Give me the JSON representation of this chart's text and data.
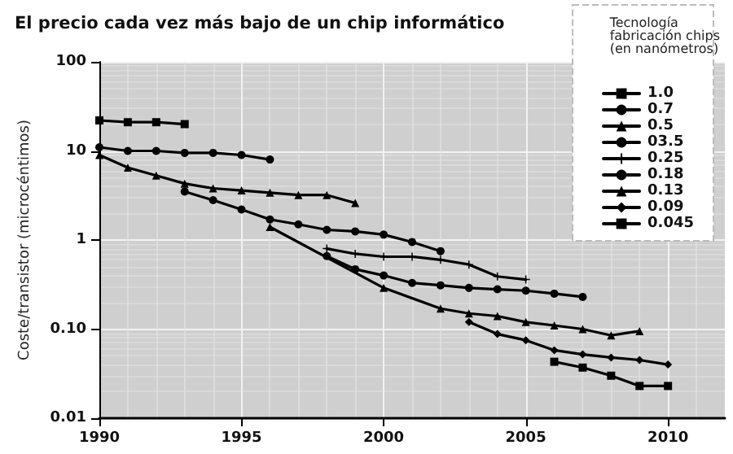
{
  "chart_data": {
    "type": "line",
    "title": "El precio cada vez más bajo de un chip informático",
    "ylabel": "Coste/transistor (microcéntimos)",
    "legend_title": "Tecnología\nfabricación chips\n(en nanómetros)",
    "xlim": [
      1990,
      2012
    ],
    "xticks": [
      1990,
      1995,
      2000,
      2005,
      2010
    ],
    "ylim": [
      0.01,
      100
    ],
    "yticks": [
      0.01,
      {
        "value": 0.1,
        "label": "0.10"
      },
      1,
      10,
      100
    ],
    "log": "y",
    "grid": true,
    "legend": "top right",
    "series": [
      {
        "name": "1.0",
        "color": "#000000",
        "marker": "square",
        "x": [
          1990,
          1991,
          1992,
          1993
        ],
        "values": [
          22,
          21,
          21,
          20
        ]
      },
      {
        "name": "0.7",
        "color": "#000000",
        "marker": "circle",
        "x": [
          1990,
          1991,
          1992,
          1993,
          1994,
          1995,
          1996
        ],
        "values": [
          11,
          10,
          10,
          9.5,
          9.5,
          9,
          8
        ]
      },
      {
        "name": "0.5",
        "color": "#000000",
        "marker": "triangle",
        "x": [
          1990,
          1991,
          1992,
          1993,
          1994,
          1995,
          1996,
          1997,
          1998,
          1999
        ],
        "values": [
          9,
          6.5,
          5.3,
          4.3,
          3.8,
          3.6,
          3.4,
          3.2,
          3.2,
          2.6
        ]
      },
      {
        "name": "03.5",
        "color": "#000000",
        "marker": "circle",
        "x": [
          1993,
          1994,
          1995,
          1996,
          1997,
          1998,
          1999,
          2000,
          2001,
          2002
        ],
        "values": [
          3.5,
          2.8,
          2.2,
          1.7,
          1.5,
          1.3,
          1.25,
          1.15,
          0.95,
          0.75
        ]
      },
      {
        "name": "0.25",
        "color": "#000000",
        "marker": "cross",
        "x": [
          1998,
          1999,
          2000,
          2001,
          2002,
          2003,
          2004,
          2005
        ],
        "values": [
          0.8,
          0.7,
          0.65,
          0.65,
          0.6,
          0.53,
          0.39,
          0.36
        ]
      },
      {
        "name": "0.18",
        "color": "#000000",
        "marker": "circle",
        "x": [
          1998,
          1999,
          2000,
          2001,
          2002,
          2003,
          2004,
          2005,
          2006,
          2007
        ],
        "values": [
          0.66,
          0.47,
          0.4,
          0.33,
          0.31,
          0.29,
          0.28,
          0.27,
          0.25,
          0.23
        ]
      },
      {
        "name": "0.13",
        "color": "#000000",
        "marker": "triangle",
        "x": [
          1996,
          2000,
          2002,
          2003,
          2004,
          2005,
          2006,
          2007,
          2008,
          2009
        ],
        "values": [
          1.4,
          0.29,
          0.17,
          0.15,
          0.14,
          0.12,
          0.11,
          0.1,
          0.085,
          0.095
        ]
      },
      {
        "name": "0.09",
        "color": "#000000",
        "marker": "diamond",
        "x": [
          2003,
          2004,
          2005,
          2006,
          2007,
          2008,
          2009,
          2010
        ],
        "values": [
          0.12,
          0.088,
          0.075,
          0.058,
          0.052,
          0.048,
          0.045,
          0.04
        ]
      },
      {
        "name": "0.045",
        "color": "#000000",
        "marker": "square",
        "x": [
          2006,
          2007,
          2008,
          2009,
          2010
        ],
        "values": [
          0.043,
          0.037,
          0.03,
          0.023,
          0.023
        ]
      }
    ]
  }
}
